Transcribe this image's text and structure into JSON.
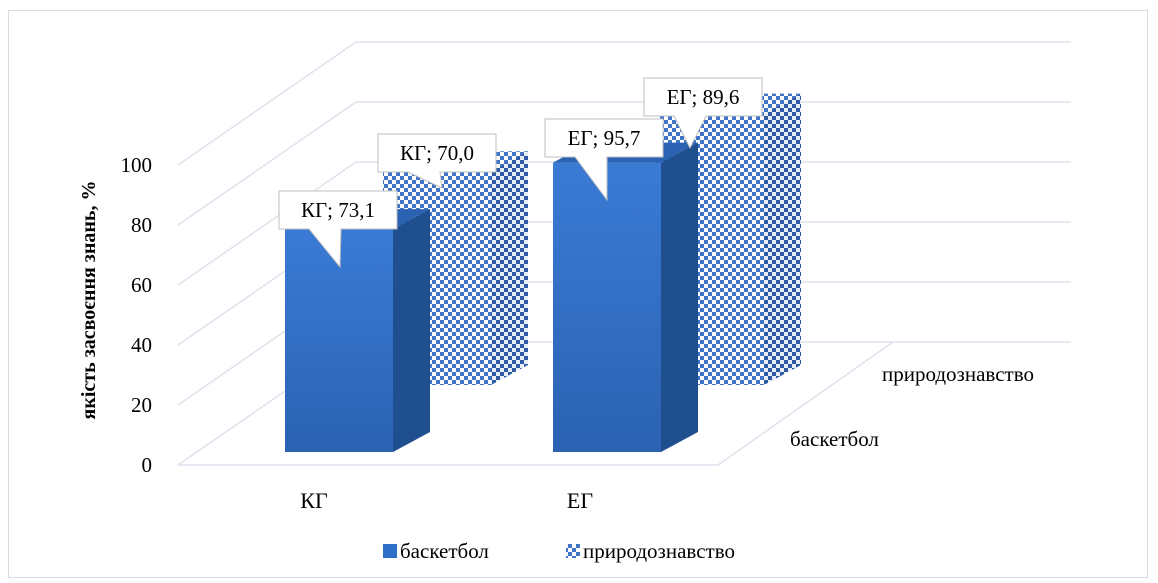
{
  "chart_data": {
    "type": "bar",
    "style": "3d-clustered-columns",
    "categories": [
      "КГ",
      "ЕГ"
    ],
    "series": [
      {
        "name": "баскетбол",
        "values": [
          73.1,
          95.7
        ],
        "color": "#2e6fc7",
        "pattern": "solid"
      },
      {
        "name": "природознавство",
        "values": [
          70.0,
          89.6
        ],
        "color": "#3f74c9",
        "pattern": "checkerboard"
      }
    ],
    "data_labels": [
      [
        "КГ; 73,1",
        "ЕГ; 95,7"
      ],
      [
        "КГ; 70,0",
        "ЕГ; 89,6"
      ]
    ],
    "ylabel": "якість засвоєння знань, %",
    "xlabel": "",
    "ylim": [
      0,
      100
    ],
    "yticks": [
      "0",
      "20",
      "40",
      "60",
      "80",
      "100"
    ],
    "depth_labels": [
      "баскетбол",
      "природознавство"
    ],
    "legend": {
      "position": "bottom",
      "entries": [
        "баскетбол",
        "природознавство"
      ]
    },
    "grid": true
  }
}
